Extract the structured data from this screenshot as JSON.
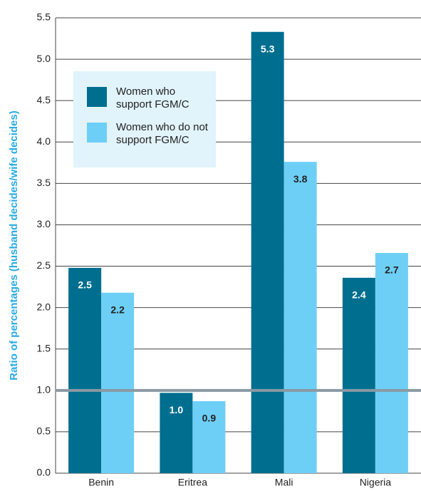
{
  "chart_data": {
    "type": "bar",
    "y_label": "Ratio of percentages (husband decides/wife decides)",
    "categories": [
      "Benin",
      "Eritrea",
      "Mali",
      "Nigeria"
    ],
    "series": [
      {
        "name": "Women who support FGM/C",
        "color": "#006e8f",
        "values": [
          2.48,
          0.97,
          5.33,
          2.36
        ],
        "value_labels": [
          "2.5",
          "1.0",
          "5.3",
          "2.4"
        ]
      },
      {
        "name": "Women who do not support FGM/C",
        "color": "#6dcff6",
        "values": [
          2.18,
          0.87,
          3.76,
          2.66
        ],
        "value_labels": [
          "2.2",
          "0.9",
          "3.8",
          "2.7"
        ]
      }
    ],
    "ylim": [
      0,
      5.5
    ],
    "yticks": [
      {
        "value": 0,
        "label": "0.0"
      },
      0.5,
      {
        "value": 1,
        "label": "1.0"
      },
      1.5,
      {
        "value": 2,
        "label": "2.0"
      },
      2.5,
      {
        "value": 3,
        "label": "3.0"
      },
      3.5,
      {
        "value": 4,
        "label": "4.0"
      },
      4.5,
      {
        "value": 5,
        "label": "5.0"
      },
      5.5
    ],
    "reference_line": 1,
    "grid": true
  }
}
